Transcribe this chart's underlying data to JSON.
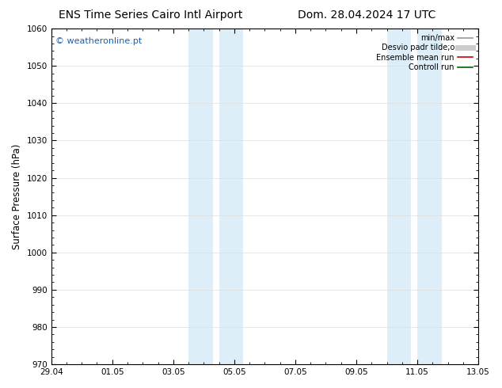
{
  "title_left": "ENS Time Series Cairo Intl Airport",
  "title_right": "Dom. 28.04.2024 17 UTC",
  "ylabel": "Surface Pressure (hPa)",
  "ylim": [
    970,
    1060
  ],
  "yticks": [
    970,
    980,
    990,
    1000,
    1010,
    1020,
    1030,
    1040,
    1050,
    1060
  ],
  "xtick_labels": [
    "29.04",
    "01.05",
    "03.05",
    "05.05",
    "07.05",
    "09.05",
    "11.05",
    "13.05"
  ],
  "xtick_positions": [
    0,
    2,
    4,
    6,
    8,
    10,
    12,
    14
  ],
  "shaded_bands": [
    {
      "x_start": 4.5,
      "x_end": 5.3
    },
    {
      "x_start": 5.5,
      "x_end": 6.3
    },
    {
      "x_start": 11.0,
      "x_end": 11.8
    },
    {
      "x_start": 12.0,
      "x_end": 12.8
    }
  ],
  "shaded_color": "#ddeef8",
  "watermark": "© weatheronline.pt",
  "watermark_color": "#1a5fb4",
  "background_color": "#ffffff",
  "legend_entries": [
    {
      "label": "min/max",
      "color": "#999999",
      "lw": 1.2
    },
    {
      "label": "Desvio padr tilde;o",
      "color": "#cccccc",
      "lw": 5
    },
    {
      "label": "Ensemble mean run",
      "color": "#cc0000",
      "lw": 1.2
    },
    {
      "label": "Controll run",
      "color": "#006600",
      "lw": 1.2
    }
  ],
  "title_fontsize": 10,
  "tick_fontsize": 7.5,
  "ylabel_fontsize": 8.5,
  "watermark_fontsize": 8
}
